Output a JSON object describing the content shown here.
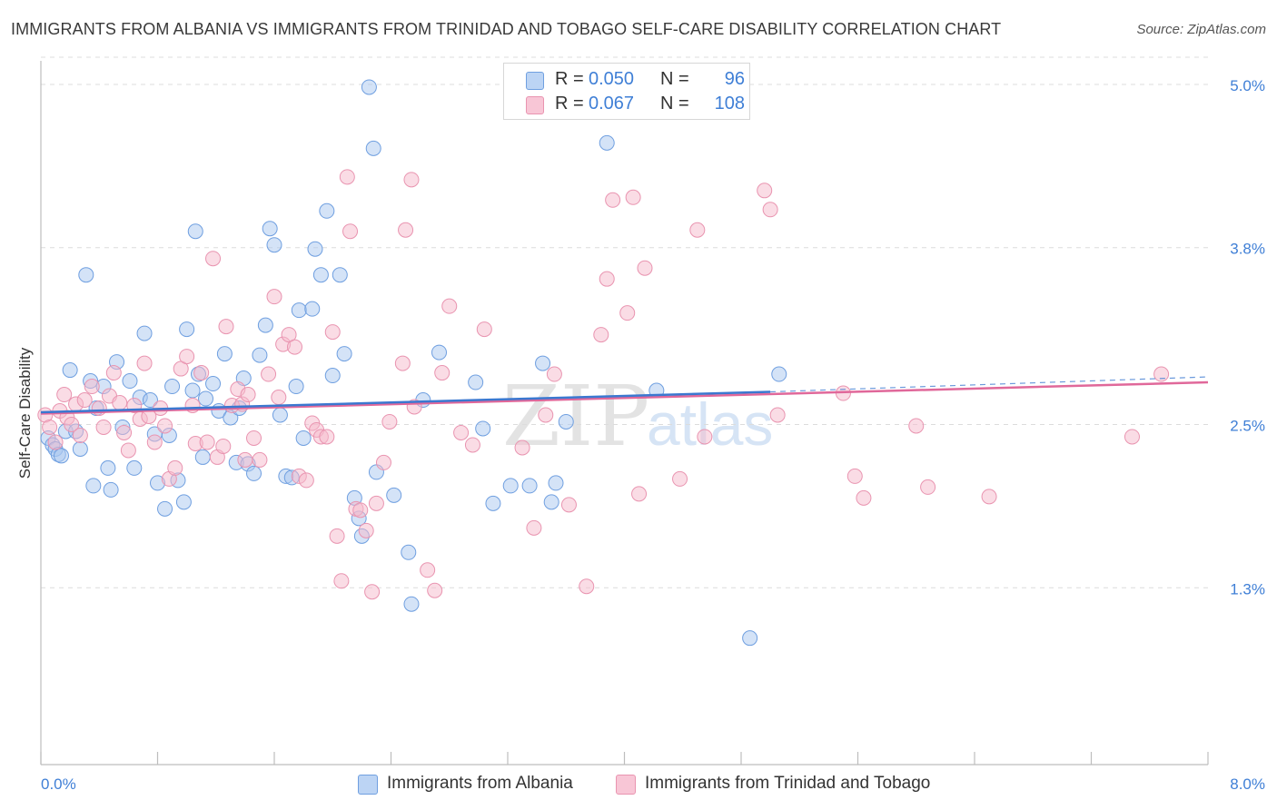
{
  "header": {
    "title": "IMMIGRANTS FROM ALBANIA VS IMMIGRANTS FROM TRINIDAD AND TOBAGO SELF-CARE DISABILITY CORRELATION CHART",
    "source": "Source: ZipAtlas.com"
  },
  "stats": {
    "albania": {
      "r_label": "R =",
      "r_value": "0.050",
      "n_label": "N =",
      "n_value": "96"
    },
    "trinidad": {
      "r_label": "R =",
      "r_value": "0.067",
      "n_label": "N =",
      "n_value": "108"
    }
  },
  "legend": {
    "albania": "Immigrants from Albania",
    "trinidad": "Immigrants from Trinidad and Tobago"
  },
  "watermark": {
    "zip": "ZIP",
    "atlas": "atlas"
  },
  "colors": {
    "albania_fill": "#aac8f0",
    "albania_stroke": "#6f9fe0",
    "albania_line": "#3b78d0",
    "trinidad_fill": "#f6b9cc",
    "trinidad_stroke": "#e994b0",
    "trinidad_line": "#e0689a",
    "tick_label": "#3f7fd6",
    "grid": "#dcdcdc"
  },
  "chart_data": {
    "type": "scatter",
    "xlabel": "",
    "ylabel": "Self-Care Disability",
    "xlim": [
      0.0,
      8.0
    ],
    "ylim": [
      0.0,
      5.2
    ],
    "x_tick_labels": [
      "0.0%",
      "8.0%"
    ],
    "y_ticks": [
      1.3,
      2.5,
      3.8,
      5.0
    ],
    "y_tick_labels": [
      "1.3%",
      "2.5%",
      "3.8%",
      "5.0%"
    ],
    "grid": "horizontal dashed",
    "series": [
      {
        "name": "Immigrants from Albania",
        "trend": {
          "x": [
            0.0,
            5.0
          ],
          "y": [
            2.59,
            2.74
          ],
          "extended_to_x": 8.0,
          "extended_y": 2.85
        },
        "points": [
          [
            0.05,
            2.4
          ],
          [
            0.08,
            2.35
          ],
          [
            0.1,
            2.32
          ],
          [
            0.12,
            2.28
          ],
          [
            0.14,
            2.27
          ],
          [
            0.17,
            2.45
          ],
          [
            0.2,
            2.9
          ],
          [
            0.24,
            2.45
          ],
          [
            0.27,
            2.32
          ],
          [
            0.31,
            3.6
          ],
          [
            0.34,
            2.82
          ],
          [
            0.36,
            2.05
          ],
          [
            0.38,
            2.62
          ],
          [
            0.43,
            2.78
          ],
          [
            0.46,
            2.18
          ],
          [
            0.48,
            2.02
          ],
          [
            0.52,
            2.96
          ],
          [
            0.56,
            2.48
          ],
          [
            0.61,
            2.82
          ],
          [
            0.64,
            2.18
          ],
          [
            0.68,
            2.7
          ],
          [
            0.71,
            3.17
          ],
          [
            0.75,
            2.68
          ],
          [
            0.78,
            2.43
          ],
          [
            0.8,
            2.07
          ],
          [
            0.85,
            1.88
          ],
          [
            0.88,
            2.42
          ],
          [
            0.9,
            2.78
          ],
          [
            0.94,
            2.09
          ],
          [
            0.98,
            1.93
          ],
          [
            1.0,
            3.2
          ],
          [
            1.04,
            2.75
          ],
          [
            1.06,
            3.92
          ],
          [
            1.08,
            2.87
          ],
          [
            1.11,
            2.26
          ],
          [
            1.13,
            2.69
          ],
          [
            1.18,
            2.8
          ],
          [
            1.22,
            2.6
          ],
          [
            1.26,
            3.02
          ],
          [
            1.3,
            2.55
          ],
          [
            1.34,
            2.22
          ],
          [
            1.36,
            2.62
          ],
          [
            1.39,
            2.84
          ],
          [
            1.42,
            2.21
          ],
          [
            1.46,
            2.14
          ],
          [
            1.5,
            3.01
          ],
          [
            1.54,
            3.23
          ],
          [
            1.57,
            3.94
          ],
          [
            1.6,
            3.82
          ],
          [
            1.64,
            2.57
          ],
          [
            1.68,
            2.12
          ],
          [
            1.72,
            2.11
          ],
          [
            1.75,
            2.78
          ],
          [
            1.77,
            3.34
          ],
          [
            1.8,
            2.4
          ],
          [
            1.86,
            3.35
          ],
          [
            1.88,
            3.79
          ],
          [
            1.92,
            3.6
          ],
          [
            1.96,
            4.07
          ],
          [
            2.0,
            2.86
          ],
          [
            2.05,
            3.6
          ],
          [
            2.08,
            3.02
          ],
          [
            2.15,
            1.96
          ],
          [
            2.18,
            1.81
          ],
          [
            2.2,
            1.68
          ],
          [
            2.25,
            4.98
          ],
          [
            2.28,
            4.53
          ],
          [
            2.3,
            2.15
          ],
          [
            2.42,
            1.98
          ],
          [
            2.52,
            1.56
          ],
          [
            2.54,
            1.18
          ],
          [
            2.62,
            2.68
          ],
          [
            2.73,
            3.03
          ],
          [
            2.98,
            2.81
          ],
          [
            3.03,
            2.47
          ],
          [
            3.1,
            1.92
          ],
          [
            3.22,
            2.05
          ],
          [
            3.35,
            2.05
          ],
          [
            3.44,
            2.95
          ],
          [
            3.5,
            1.93
          ],
          [
            3.53,
            2.07
          ],
          [
            3.6,
            2.52
          ],
          [
            3.88,
            4.57
          ],
          [
            4.22,
            2.75
          ],
          [
            4.86,
            0.93
          ],
          [
            5.06,
            2.87
          ]
        ]
      },
      {
        "name": "Immigrants from Trinidad and Tobago",
        "trend": {
          "x": [
            0.0,
            8.0
          ],
          "y": [
            2.58,
            2.81
          ]
        },
        "points": [
          [
            0.03,
            2.57
          ],
          [
            0.06,
            2.48
          ],
          [
            0.1,
            2.37
          ],
          [
            0.13,
            2.6
          ],
          [
            0.16,
            2.72
          ],
          [
            0.18,
            2.55
          ],
          [
            0.21,
            2.5
          ],
          [
            0.24,
            2.65
          ],
          [
            0.27,
            2.42
          ],
          [
            0.3,
            2.68
          ],
          [
            0.35,
            2.78
          ],
          [
            0.4,
            2.62
          ],
          [
            0.43,
            2.48
          ],
          [
            0.47,
            2.71
          ],
          [
            0.5,
            2.88
          ],
          [
            0.54,
            2.66
          ],
          [
            0.57,
            2.44
          ],
          [
            0.6,
            2.31
          ],
          [
            0.64,
            2.64
          ],
          [
            0.68,
            2.54
          ],
          [
            0.71,
            2.95
          ],
          [
            0.74,
            2.56
          ],
          [
            0.78,
            2.37
          ],
          [
            0.82,
            2.62
          ],
          [
            0.85,
            2.49
          ],
          [
            0.88,
            2.1
          ],
          [
            0.92,
            2.18
          ],
          [
            0.96,
            2.91
          ],
          [
            1.0,
            3.0
          ],
          [
            1.04,
            2.64
          ],
          [
            1.06,
            2.36
          ],
          [
            1.1,
            2.88
          ],
          [
            1.14,
            2.37
          ],
          [
            1.18,
            3.72
          ],
          [
            1.21,
            2.26
          ],
          [
            1.25,
            2.34
          ],
          [
            1.27,
            3.22
          ],
          [
            1.31,
            2.64
          ],
          [
            1.35,
            2.76
          ],
          [
            1.38,
            2.65
          ],
          [
            1.4,
            2.24
          ],
          [
            1.42,
            2.72
          ],
          [
            1.46,
            2.4
          ],
          [
            1.5,
            2.24
          ],
          [
            1.56,
            2.87
          ],
          [
            1.6,
            3.44
          ],
          [
            1.63,
            2.7
          ],
          [
            1.66,
            3.09
          ],
          [
            1.7,
            3.16
          ],
          [
            1.74,
            3.07
          ],
          [
            1.77,
            2.12
          ],
          [
            1.82,
            2.09
          ],
          [
            1.86,
            2.51
          ],
          [
            1.89,
            2.46
          ],
          [
            1.92,
            2.41
          ],
          [
            1.96,
            2.41
          ],
          [
            2.0,
            3.18
          ],
          [
            2.03,
            1.68
          ],
          [
            2.06,
            1.35
          ],
          [
            2.1,
            4.32
          ],
          [
            2.12,
            3.92
          ],
          [
            2.16,
            1.88
          ],
          [
            2.19,
            1.87
          ],
          [
            2.23,
            1.72
          ],
          [
            2.27,
            1.27
          ],
          [
            2.3,
            1.92
          ],
          [
            2.35,
            2.22
          ],
          [
            2.39,
            2.52
          ],
          [
            2.48,
            2.95
          ],
          [
            2.5,
            3.93
          ],
          [
            2.54,
            4.3
          ],
          [
            2.56,
            2.63
          ],
          [
            2.65,
            1.43
          ],
          [
            2.7,
            1.28
          ],
          [
            2.75,
            2.88
          ],
          [
            2.8,
            3.37
          ],
          [
            2.88,
            2.44
          ],
          [
            2.96,
            2.35
          ],
          [
            3.04,
            3.2
          ],
          [
            3.3,
            2.33
          ],
          [
            3.38,
            1.74
          ],
          [
            3.46,
            2.57
          ],
          [
            3.52,
            2.87
          ],
          [
            3.62,
            1.91
          ],
          [
            3.74,
            1.31
          ],
          [
            3.84,
            3.16
          ],
          [
            3.88,
            3.57
          ],
          [
            3.92,
            4.15
          ],
          [
            4.02,
            3.32
          ],
          [
            4.06,
            4.17
          ],
          [
            4.1,
            1.99
          ],
          [
            4.14,
            3.65
          ],
          [
            4.38,
            2.1
          ],
          [
            4.5,
            3.93
          ],
          [
            4.55,
            2.41
          ],
          [
            4.96,
            4.22
          ],
          [
            5.0,
            4.08
          ],
          [
            5.05,
            2.57
          ],
          [
            5.5,
            2.73
          ],
          [
            5.58,
            2.12
          ],
          [
            5.64,
            1.96
          ],
          [
            6.0,
            2.49
          ],
          [
            6.08,
            2.04
          ],
          [
            6.5,
            1.97
          ],
          [
            7.48,
            2.41
          ],
          [
            7.68,
            2.87
          ]
        ]
      }
    ]
  }
}
